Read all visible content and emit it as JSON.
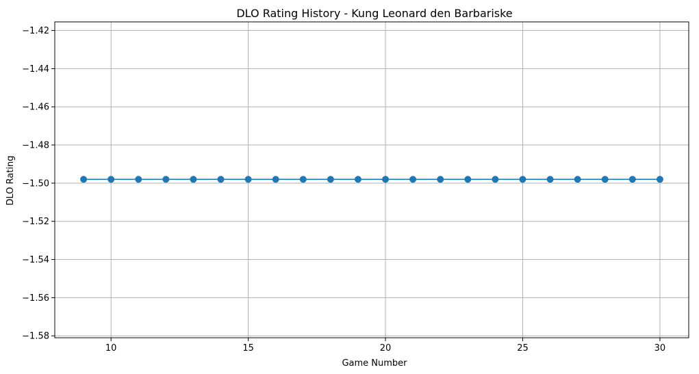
{
  "chart_data": {
    "type": "line",
    "title": "DLO Rating History - Kung Leonard den Barbariske",
    "xlabel": "Game Number",
    "ylabel": "DLO Rating",
    "xlim": [
      7.95,
      31.05
    ],
    "ylim": [
      -1.581,
      -1.4155
    ],
    "x_ticks": [
      10,
      15,
      20,
      25,
      30
    ],
    "x_tick_labels": [
      "10",
      "15",
      "20",
      "25",
      "30"
    ],
    "y_ticks": [
      -1.42,
      -1.44,
      -1.46,
      -1.48,
      -1.5,
      -1.52,
      -1.54,
      -1.56,
      -1.58
    ],
    "y_tick_labels": [
      "−1.42",
      "−1.44",
      "−1.46",
      "−1.48",
      "−1.50",
      "−1.52",
      "−1.54",
      "−1.56",
      "−1.58"
    ],
    "grid": true,
    "legend": "none",
    "color": "#1f77b4",
    "marker": "circle",
    "series": [
      {
        "x": [
          9,
          10,
          11,
          12,
          13,
          14,
          15,
          16,
          17,
          18,
          19,
          20,
          21,
          22,
          23,
          24,
          25,
          26,
          27,
          28,
          29,
          30
        ],
        "y": [
          -1.498,
          -1.498,
          -1.498,
          -1.498,
          -1.498,
          -1.498,
          -1.498,
          -1.498,
          -1.498,
          -1.498,
          -1.498,
          -1.498,
          -1.498,
          -1.498,
          -1.498,
          -1.498,
          -1.498,
          -1.498,
          -1.498,
          -1.498,
          -1.498,
          -1.498
        ]
      }
    ]
  }
}
